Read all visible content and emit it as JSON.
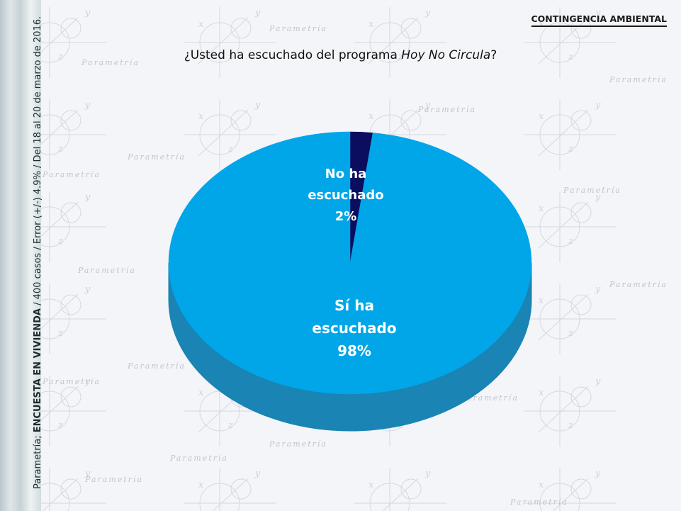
{
  "header": {
    "section_title": "CONTINGENCIA AMBIENTAL"
  },
  "question": {
    "prefix": "¿Usted ha escuchado del programa ",
    "program": "Hoy No Circula",
    "suffix": "?"
  },
  "source_note": {
    "prefix": "Parametría; ",
    "bold": "ENCUESTA EN VIVIENDA",
    "rest": " / 400 casos / Error (+/-) 4.9% / Del 18 al 20 de marzo de 2016."
  },
  "watermark": "Parametría",
  "colors": {
    "si": "#00a6e8",
    "si_side": "#1a84b4",
    "no": "#0b0d5e",
    "label": "#ffffff"
  },
  "chart_data": {
    "type": "pie",
    "title": "¿Usted ha escuchado del programa Hoy No Circula?",
    "slices": [
      {
        "label_lines": [
          "No ha",
          "escuchado"
        ],
        "value": 2,
        "value_label": "2%"
      },
      {
        "label_lines": [
          "Sí ha",
          "escuchado"
        ],
        "value": 98,
        "value_label": "98%"
      }
    ]
  }
}
